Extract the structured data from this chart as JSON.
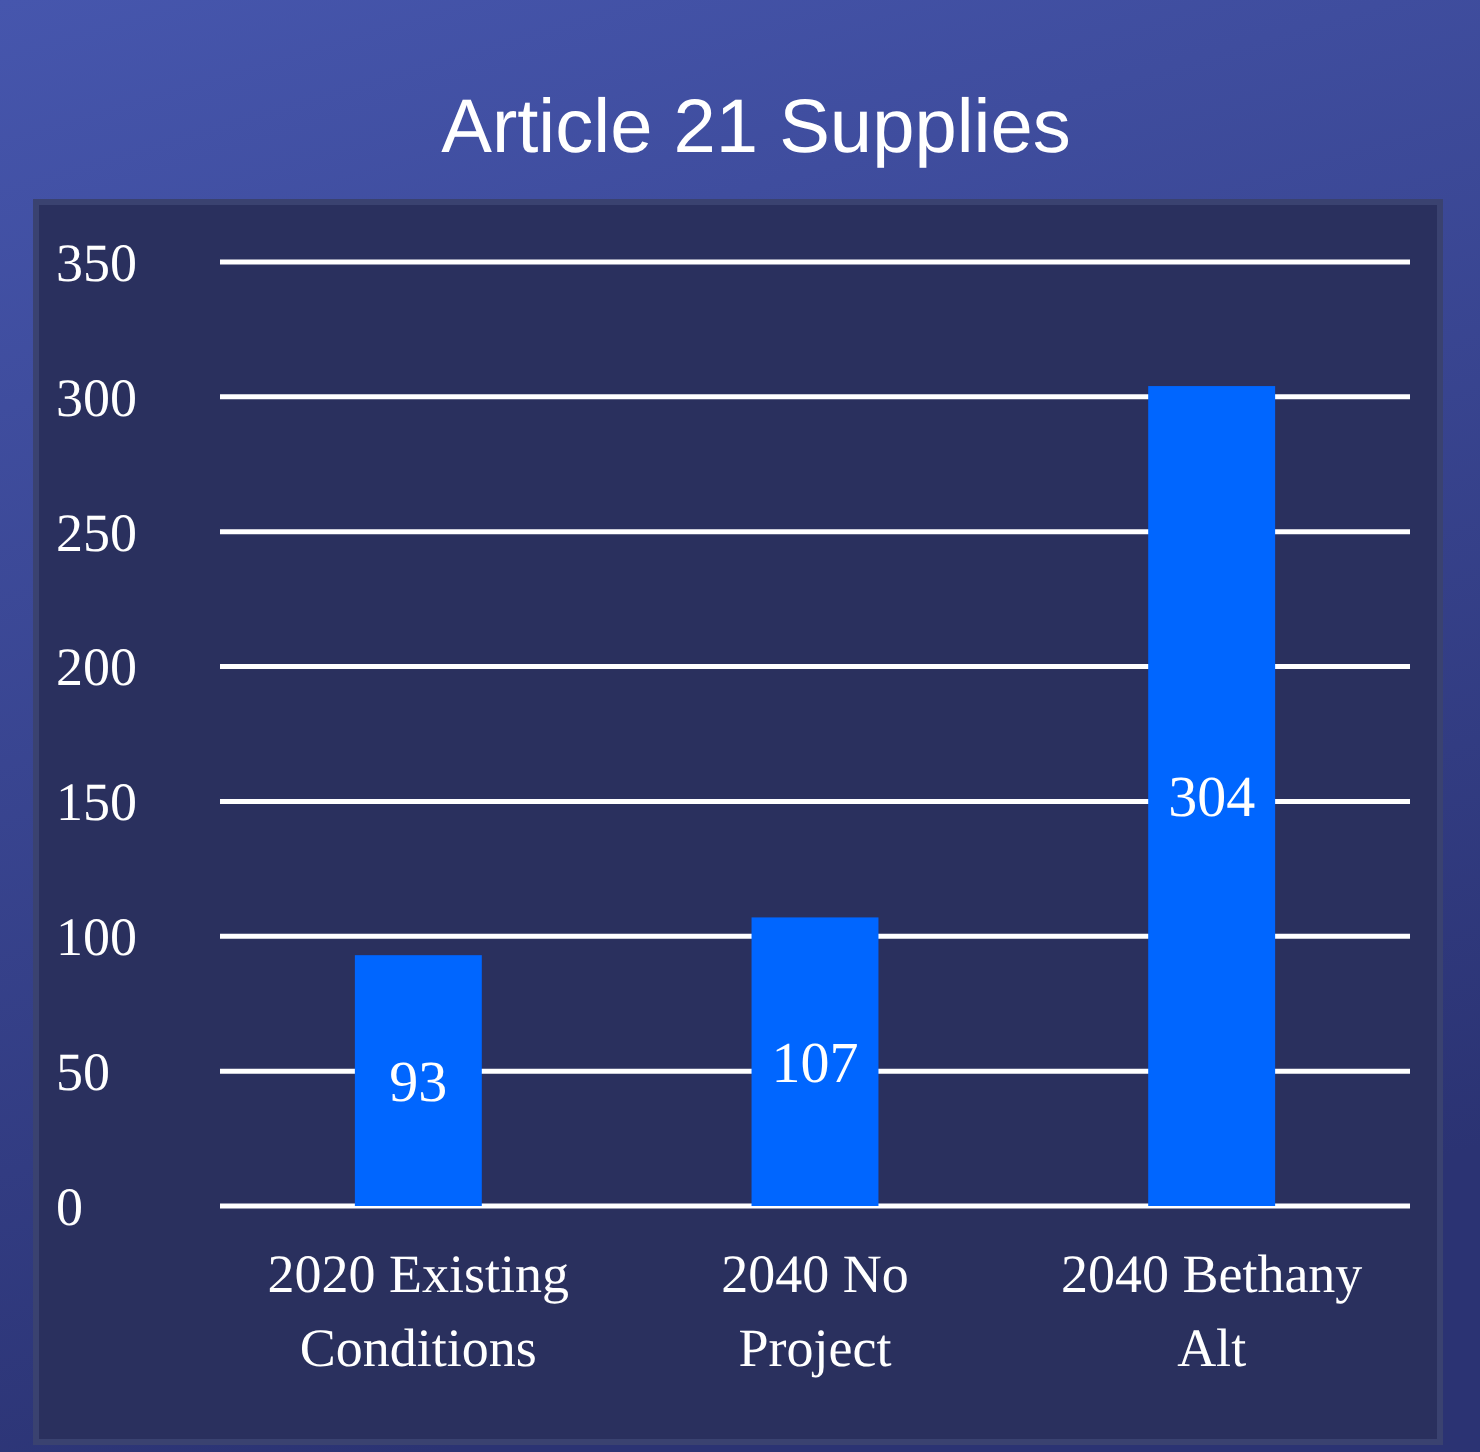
{
  "chart_data": {
    "type": "bar",
    "title": "Article 21 Supplies",
    "categories": [
      "2020 Existing Conditions",
      "2040 No Project",
      "2040 Bethany Alt"
    ],
    "values": [
      93,
      107,
      304
    ],
    "color": "#0066ff",
    "ylim": [
      0,
      350
    ],
    "yticks": [
      0,
      50,
      100,
      150,
      200,
      250,
      300,
      350
    ],
    "grid": "y",
    "data_labels": true
  }
}
